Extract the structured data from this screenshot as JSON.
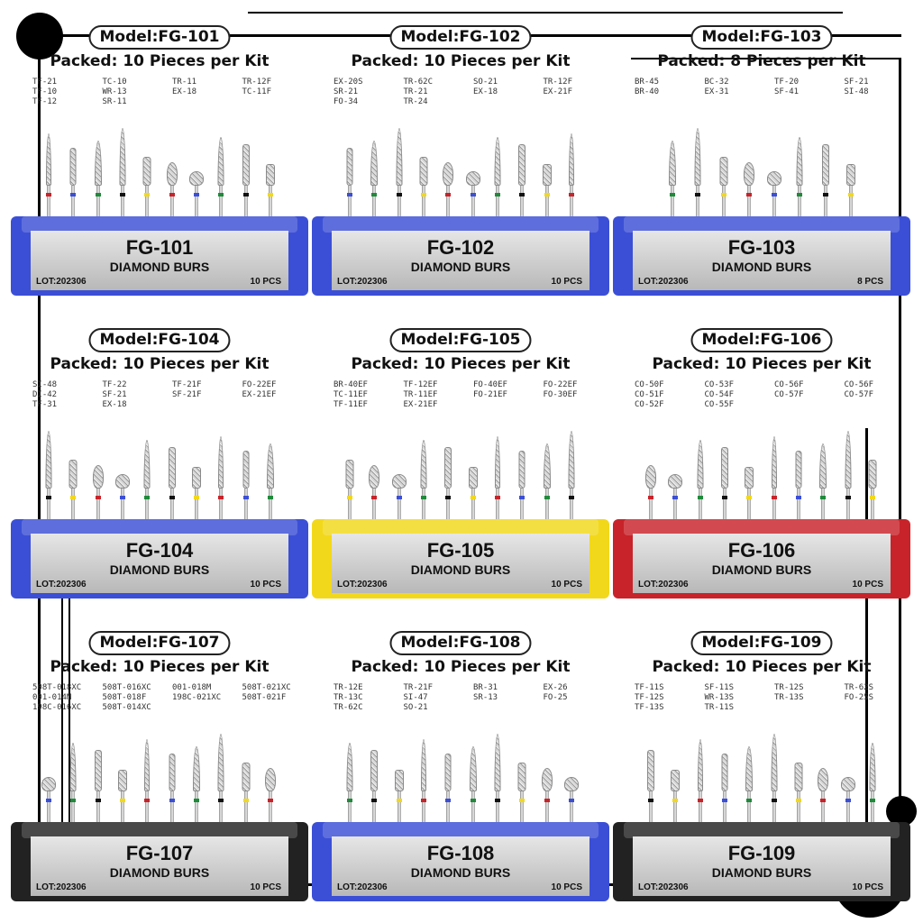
{
  "header_label_prefix": "Model:",
  "accent_colors": {
    "blue": "#3b4fd6",
    "yellow": "#f2d81a",
    "red": "#c8232a",
    "black": "#222222"
  },
  "kits": [
    {
      "model": "Model:FG-101",
      "packed": "Packed: 10 Pieces per Kit",
      "codes": [
        "TF-21",
        "TC-10",
        "TR-11",
        "TR-12F",
        "TF-10",
        "WR-13",
        "EX-18",
        "TC-11F",
        "TF-12",
        "SR-11"
      ],
      "fg": "FG-101",
      "sub": "DIAMOND BURS",
      "lot": "LOT:202306",
      "pcs": "10 PCS",
      "stand": "blue"
    },
    {
      "model": "Model:FG-102",
      "packed": "Packed: 10 Pieces per Kit",
      "codes": [
        "EX-20S",
        "TR-62C",
        "SO-21",
        "TR-12F",
        "SR-21",
        "TR-21",
        "EX-18",
        "EX-21F",
        "FO-34",
        "TR-24"
      ],
      "fg": "FG-102",
      "sub": "DIAMOND BURS",
      "lot": "LOT:202306",
      "pcs": "10 PCS",
      "stand": "blue"
    },
    {
      "model": "Model:FG-103",
      "packed": "Packed: 8 Pieces per Kit",
      "codes": [
        "BR-45",
        "BC-32",
        "TF-20",
        "SF-21",
        "BR-40",
        "EX-31",
        "SF-41",
        "SI-48"
      ],
      "fg": "FG-103",
      "sub": "DIAMOND BURS",
      "lot": "LOT:202306",
      "pcs": "8 PCS",
      "stand": "blue"
    },
    {
      "model": "Model:FG-104",
      "packed": "Packed: 10 Pieces per Kit",
      "codes": [
        "SI-48",
        "TF-22",
        "TF-21F",
        "FO-22EF",
        "DI-42",
        "SF-21",
        "SF-21F",
        "EX-21EF",
        "TF-31",
        "EX-18"
      ],
      "fg": "FG-104",
      "sub": "DIAMOND BURS",
      "lot": "LOT:202306",
      "pcs": "10 PCS",
      "stand": "blue"
    },
    {
      "model": "Model:FG-105",
      "packed": "Packed: 10 Pieces per Kit",
      "codes": [
        "BR-40EF",
        "TF-12EF",
        "FO-40EF",
        "FO-22EF",
        "TC-11EF",
        "TR-11EF",
        "FO-21EF",
        "FO-30EF",
        "TF-11EF",
        "EX-21EF"
      ],
      "fg": "FG-105",
      "sub": "DIAMOND BURS",
      "lot": "LOT:202306",
      "pcs": "10 PCS",
      "stand": "yellow"
    },
    {
      "model": "Model:FG-106",
      "packed": "Packed: 10 Pieces per Kit",
      "codes": [
        "CO-50F",
        "CO-53F",
        "CO-56F",
        "CO-56F",
        "CO-51F",
        "CO-54F",
        "CO-57F",
        "CO-57F",
        "CO-52F",
        "CO-55F"
      ],
      "fg": "FG-106",
      "sub": "DIAMOND BURS",
      "lot": "LOT:202306",
      "pcs": "10 PCS",
      "stand": "red"
    },
    {
      "model": "Model:FG-107",
      "packed": "Packed: 10 Pieces per Kit",
      "codes": [
        "508T-018XC",
        "508T-016XC",
        "001-018M",
        "508T-021XC",
        "001-014M",
        "508T-018F",
        "198C-021XC",
        "508T-021F",
        "198C-016XC",
        "508T-014XC"
      ],
      "fg": "FG-107",
      "sub": "DIAMOND BURS",
      "lot": "LOT:202306",
      "pcs": "10 PCS",
      "stand": "black"
    },
    {
      "model": "Model:FG-108",
      "packed": "Packed: 10 Pieces per Kit",
      "codes": [
        "TR-12E",
        "TR-21F",
        "BR-31",
        "EX-26",
        "TR-13C",
        "SI-47",
        "SR-13",
        "FO-25",
        "TR-62C",
        "SO-21"
      ],
      "fg": "FG-108",
      "sub": "DIAMOND BURS",
      "lot": "LOT:202306",
      "pcs": "10 PCS",
      "stand": "blue"
    },
    {
      "model": "Model:FG-109",
      "packed": "Packed: 10 Pieces per Kit",
      "codes": [
        "TF-11S",
        "SF-11S",
        "TR-12S",
        "TR-62S",
        "TF-12S",
        "WR-13S",
        "TR-13S",
        "FO-25S",
        "TF-13S",
        "TR-11S"
      ],
      "fg": "FG-109",
      "sub": "DIAMOND BURS",
      "lot": "LOT:202306",
      "pcs": "10 PCS",
      "stand": "black"
    }
  ]
}
